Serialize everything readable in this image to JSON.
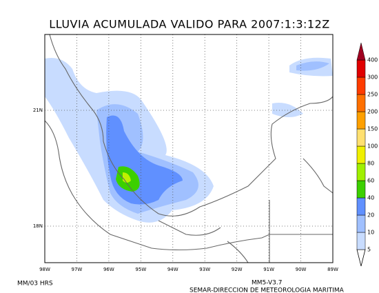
{
  "header": {
    "title": "LLUVIA ACUMULADA VALIDO PARA 2007:1:3:12Z"
  },
  "map": {
    "lon_labels": [
      "98W",
      "97W",
      "96W",
      "95W",
      "94W",
      "93W",
      "92W",
      "91W",
      "90W",
      "89W"
    ],
    "lat_labels": [
      "21N",
      "18N"
    ]
  },
  "colorbar": {
    "levels": [
      5,
      10,
      20,
      40,
      60,
      80,
      100,
      150,
      200,
      250,
      300,
      400
    ],
    "colors": [
      "#c8dcff",
      "#a0c0ff",
      "#6090ff",
      "#3cd000",
      "#a0f000",
      "#f0f000",
      "#ffe070",
      "#ffa000",
      "#ff7000",
      "#ff3c00",
      "#e00000",
      "#a00020"
    ]
  },
  "footer": {
    "left": "MM/03 HRS",
    "model": "MM5-V3.7",
    "agency": "SEMAR-DIRECCION DE METEOROLOGIA MARITIMA"
  }
}
